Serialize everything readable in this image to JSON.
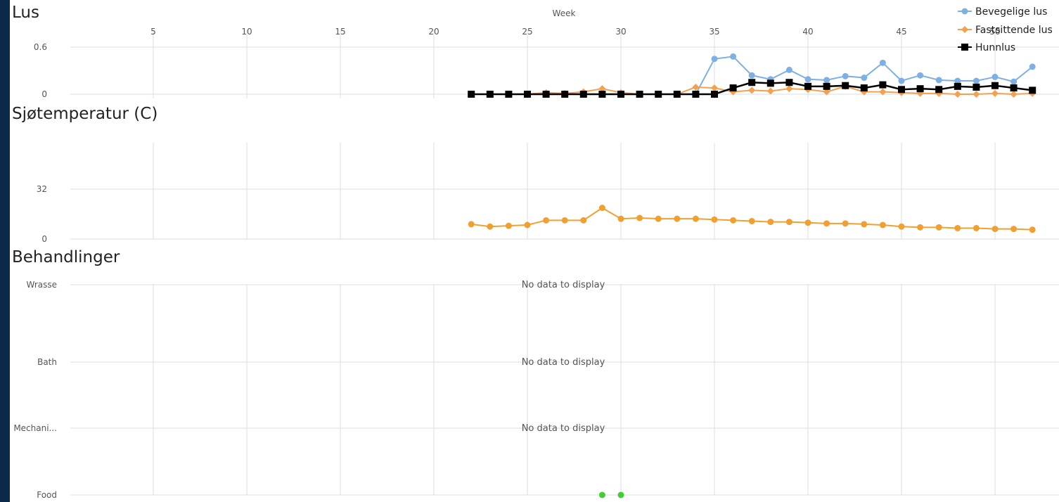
{
  "colors": {
    "bevegelige": "#7eb0e4",
    "fastsittende": "#f3a04f",
    "hunnlus": "#000000",
    "temperature": "#f0a030",
    "food": "#44cc33",
    "grid": "#d8dee9",
    "frame": "#0b2a4a"
  },
  "chart_data": [
    {
      "type": "line",
      "title": "Lus",
      "xlabel": "Week",
      "x_ticks": [
        "5",
        "10",
        "15",
        "20",
        "25",
        "30",
        "35",
        "40",
        "45",
        "50"
      ],
      "xlim": [
        1,
        53
      ],
      "ylim": [
        0,
        0.6
      ],
      "y_ticks": [
        "0",
        "0.6"
      ],
      "legend": "top-right",
      "series": [
        {
          "name": "Bevegelige lus",
          "marker": "circle",
          "x": [
            22,
            23,
            24,
            25,
            26,
            27,
            28,
            29,
            30,
            31,
            32,
            33,
            34,
            35,
            36,
            37,
            38,
            39,
            40,
            41,
            42,
            43,
            44,
            45,
            46,
            47,
            48,
            49,
            50,
            51,
            52
          ],
          "values": [
            0,
            0,
            0,
            0,
            0,
            0,
            0,
            0,
            0,
            0,
            0,
            0,
            0,
            0.45,
            0.48,
            0.24,
            0.19,
            0.31,
            0.19,
            0.18,
            0.23,
            0.21,
            0.4,
            0.17,
            0.24,
            0.18,
            0.17,
            0.17,
            0.22,
            0.16,
            0.35
          ]
        },
        {
          "name": "Fastsittende lus",
          "marker": "diamond",
          "x": [
            22,
            23,
            24,
            25,
            26,
            27,
            28,
            29,
            30,
            31,
            32,
            33,
            34,
            35,
            36,
            37,
            38,
            39,
            40,
            41,
            42,
            43,
            44,
            45,
            46,
            47,
            48,
            49,
            50,
            51,
            52
          ],
          "values": [
            0,
            0,
            0,
            0,
            0.02,
            0.01,
            0.03,
            0.07,
            0.02,
            0,
            0,
            0,
            0.09,
            0.08,
            0.03,
            0.05,
            0.04,
            0.07,
            0.06,
            0.03,
            0.1,
            0.03,
            0.03,
            0.02,
            0.01,
            0.01,
            0,
            0,
            0.01,
            0,
            0.01
          ]
        },
        {
          "name": "Hunnlus",
          "marker": "square",
          "x": [
            22,
            23,
            24,
            25,
            26,
            27,
            28,
            29,
            30,
            31,
            32,
            33,
            34,
            35,
            36,
            37,
            38,
            39,
            40,
            41,
            42,
            43,
            44,
            45,
            46,
            47,
            48,
            49,
            50,
            51,
            52
          ],
          "values": [
            0,
            0,
            0,
            0,
            0,
            0,
            0,
            0,
            0,
            0,
            0,
            0,
            0,
            0,
            0.08,
            0.15,
            0.14,
            0.15,
            0.1,
            0.1,
            0.11,
            0.08,
            0.12,
            0.06,
            0.07,
            0.06,
            0.1,
            0.09,
            0.11,
            0.08,
            0.05
          ]
        }
      ]
    },
    {
      "type": "line",
      "title": "Sjøtemperatur (C)",
      "xlim": [
        1,
        53
      ],
      "ylim": [
        0,
        32
      ],
      "y_ticks": [
        "0",
        "32"
      ],
      "series": [
        {
          "x": [
            22,
            23,
            24,
            25,
            26,
            27,
            28,
            29,
            30,
            31,
            32,
            33,
            34,
            35,
            36,
            37,
            38,
            39,
            40,
            41,
            42,
            43,
            44,
            45,
            46,
            47,
            48,
            49,
            50,
            51,
            52
          ],
          "values": [
            9.5,
            8,
            8.5,
            9,
            12,
            12,
            12,
            20,
            13,
            13.5,
            13,
            13,
            13,
            12.5,
            12,
            11.5,
            11,
            11,
            10.5,
            10,
            10,
            9.5,
            9,
            8,
            7.5,
            7.5,
            7,
            7,
            6.5,
            6.5,
            6
          ]
        }
      ]
    },
    {
      "type": "scatter",
      "title": "Behandlinger",
      "xlim": [
        1,
        53
      ],
      "categories": [
        "Wrasse",
        "Bath",
        "Mechani...",
        "Food"
      ],
      "no_data_text": "No data to display",
      "series": [
        {
          "category": "Food",
          "x": [
            29,
            30
          ]
        }
      ]
    }
  ]
}
